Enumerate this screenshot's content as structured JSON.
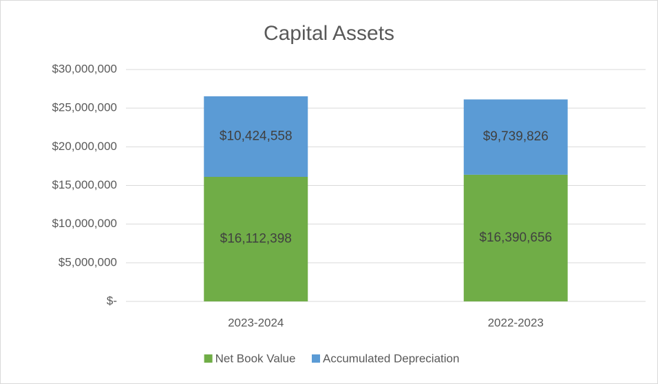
{
  "chart_data": {
    "type": "stacked_bar",
    "title": "Capital Assets",
    "categories": [
      "2023-2024",
      "2022-2023"
    ],
    "series": [
      {
        "name": "Net Book Value",
        "color": "#70ad47",
        "values": [
          16112398,
          16390656
        ],
        "value_labels": [
          "$16,112,398",
          "$16,390,656"
        ]
      },
      {
        "name": "Accumulated Depreciation",
        "color": "#5b9bd5",
        "values": [
          10424558,
          9739826
        ],
        "value_labels": [
          "$10,424,558",
          "$9,739,826"
        ]
      }
    ],
    "ylim": [
      0,
      30000000
    ],
    "yticks": [
      {
        "value": 0,
        "label": "$-"
      },
      {
        "value": 5000000,
        "label": "$5,000,000"
      },
      {
        "value": 10000000,
        "label": "$10,000,000"
      },
      {
        "value": 15000000,
        "label": "$15,000,000"
      },
      {
        "value": 20000000,
        "label": "$20,000,000"
      },
      {
        "value": 25000000,
        "label": "$25,000,000"
      },
      {
        "value": 30000000,
        "label": "$30,000,000"
      }
    ],
    "grid": true,
    "legend": "bottom"
  }
}
